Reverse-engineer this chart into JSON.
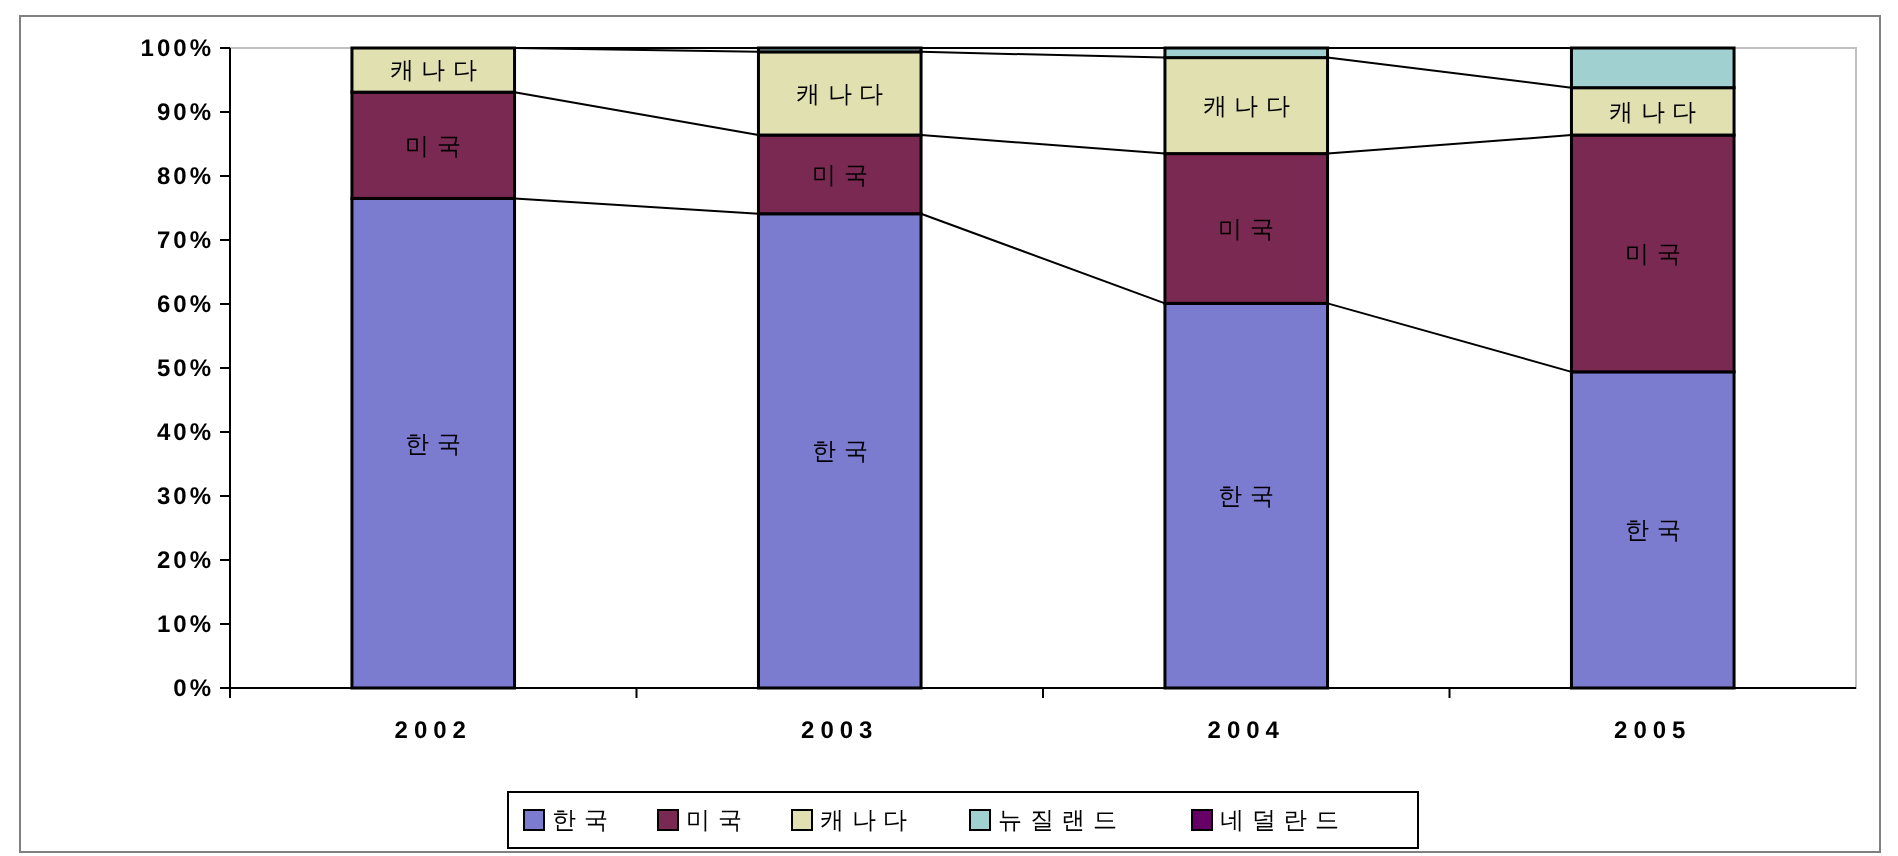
{
  "chart_data": {
    "type": "bar",
    "stacked": true,
    "categories": [
      "2002",
      "2003",
      "2004",
      "2005"
    ],
    "series": [
      {
        "name": "한 국",
        "color": "#7b7bd0",
        "values": [
          76.5,
          74.1,
          60.1,
          49.4
        ]
      },
      {
        "name": "미 국",
        "color": "#7a2a52",
        "values": [
          16.6,
          12.3,
          23.4,
          37.0
        ]
      },
      {
        "name": "캐 나 다",
        "color": "#e0e0b0",
        "values": [
          6.9,
          13.0,
          15.0,
          7.4
        ]
      },
      {
        "name": "뉴 질 랜 드",
        "color": "#a0d0d0",
        "values": [
          0,
          0.6,
          1.5,
          6.2
        ]
      },
      {
        "name": "네 덜 란 드",
        "color": "#660066",
        "values": [
          0,
          0,
          0,
          0
        ]
      }
    ],
    "ylim": [
      0,
      100
    ],
    "yticks": [
      {
        "value": 0,
        "label": "0%"
      },
      {
        "value": 10,
        "label": "10%"
      },
      {
        "value": 20,
        "label": "20%"
      },
      {
        "value": 30,
        "label": "30%"
      },
      {
        "value": 40,
        "label": "40%"
      },
      {
        "value": 50,
        "label": "50%"
      },
      {
        "value": 60,
        "label": "60%"
      },
      {
        "value": 70,
        "label": "70%"
      },
      {
        "value": 80,
        "label": "80%"
      },
      {
        "value": 90,
        "label": "90%"
      },
      {
        "value": 100,
        "label": "100%"
      }
    ],
    "grid": false,
    "legend": "bottom"
  }
}
